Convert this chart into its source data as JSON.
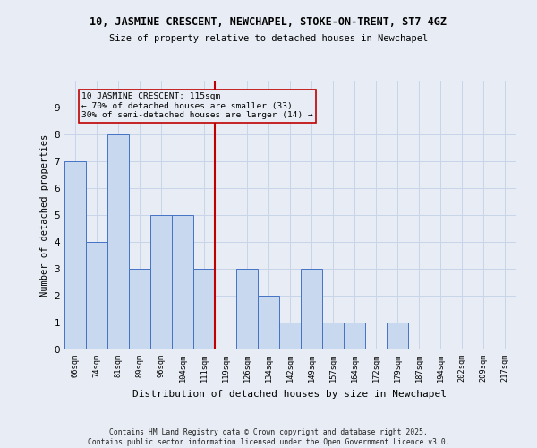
{
  "title": "10, JASMINE CRESCENT, NEWCHAPEL, STOKE-ON-TRENT, ST7 4GZ",
  "subtitle": "Size of property relative to detached houses in Newchapel",
  "xlabel": "Distribution of detached houses by size in Newchapel",
  "ylabel": "Number of detached properties",
  "bin_labels": [
    "66sqm",
    "74sqm",
    "81sqm",
    "89sqm",
    "96sqm",
    "104sqm",
    "111sqm",
    "119sqm",
    "126sqm",
    "134sqm",
    "142sqm",
    "149sqm",
    "157sqm",
    "164sqm",
    "172sqm",
    "179sqm",
    "187sqm",
    "194sqm",
    "202sqm",
    "209sqm",
    "217sqm"
  ],
  "bar_heights": [
    7,
    4,
    8,
    3,
    5,
    5,
    3,
    0,
    3,
    2,
    1,
    3,
    1,
    1,
    0,
    1,
    0,
    0,
    0,
    0,
    0
  ],
  "bar_color": "#c8d9ef",
  "bar_edgecolor": "#4472c4",
  "vline_x_index": 7,
  "vline_color": "#c00000",
  "annotation_text": "10 JASMINE CRESCENT: 115sqm\n← 70% of detached houses are smaller (33)\n30% of semi-detached houses are larger (14) →",
  "annotation_box_edgecolor": "#c00000",
  "ylim": [
    0,
    10
  ],
  "yticks": [
    0,
    1,
    2,
    3,
    4,
    5,
    6,
    7,
    8,
    9,
    10
  ],
  "grid_color": "#c8d4e8",
  "bg_color": "#e8edf5",
  "footer": "Contains HM Land Registry data © Crown copyright and database right 2025.\nContains public sector information licensed under the Open Government Licence v3.0."
}
